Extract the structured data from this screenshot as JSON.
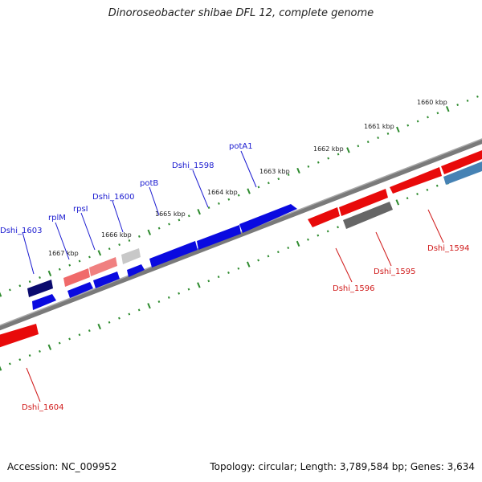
{
  "title": "Dinoroseobacter shibae DFL 12, complete genome",
  "footer": {
    "accession": "Accession: NC_009952",
    "topology": "Topology: circular; Length: 3,789,584 bp; Genes: 3,634"
  },
  "colors": {
    "backbone": "#7a7a7a",
    "tick": "#2e8b2e",
    "forward_gene": "#0a0ae0",
    "reverse_gene": "#e80a0a",
    "label_forward": "#1a1ad0",
    "label_reverse": "#d01a1a"
  },
  "scale_labels": [
    "1660 kbp",
    "1661 kbp",
    "1662 kbp",
    "1663 kbp",
    "1664 kbp",
    "1665 kbp",
    "1666 kbp",
    "1667 kbp"
  ],
  "gene_labels": {
    "Dshi_1603": "Dshi_1603",
    "rplM": "rplM",
    "rpsI": "rpsI",
    "Dshi_1600": "Dshi_1600",
    "potB": "potB",
    "Dshi_1598": "Dshi_1598",
    "potA1": "potA1",
    "Dshi_1596": "Dshi_1596",
    "Dshi_1595": "Dshi_1595",
    "Dshi_1594": "Dshi_1594",
    "Dshi_1604": "Dshi_1604"
  }
}
